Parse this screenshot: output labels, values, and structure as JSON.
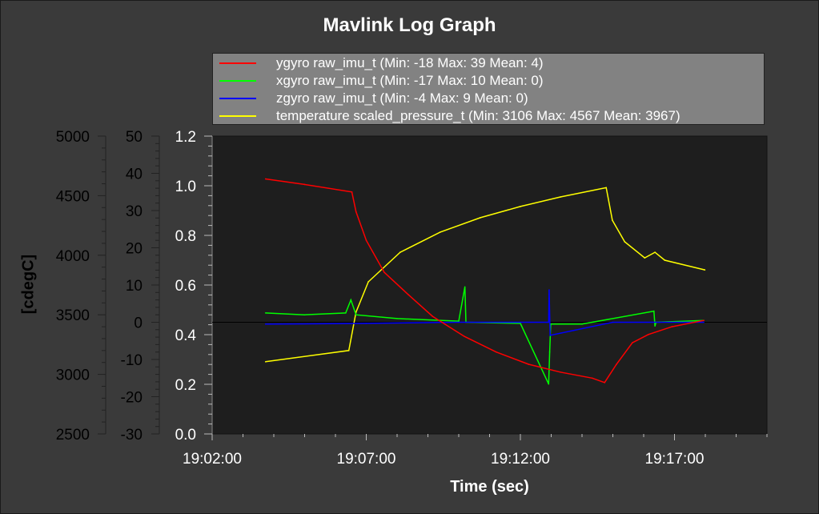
{
  "chart_data": {
    "type": "line",
    "title": "Mavlink Log Graph",
    "xlabel": "Time (sec)",
    "ylabel_left": "[cdegC]",
    "grid": false,
    "legend_placement": "top",
    "x_ticks": [
      "19:02:00",
      "19:07:00",
      "19:12:00",
      "19:17:00"
    ],
    "xlim": [
      "19:02:00",
      "19:20:00"
    ],
    "axes": {
      "temperature": {
        "ylim": [
          2500,
          5000
        ],
        "ticks": [
          "2500",
          "3000",
          "3500",
          "4000",
          "4500",
          "5000"
        ]
      },
      "gyro": {
        "ylim": [
          -30,
          50
        ],
        "ticks": [
          "-30",
          "-20",
          "-10",
          "0",
          "10",
          "20",
          "30",
          "40",
          "50"
        ]
      },
      "main": {
        "ylim": [
          0.0,
          1.2
        ],
        "ticks": [
          "0.0",
          "0.2",
          "0.4",
          "0.6",
          "0.8",
          "1.0",
          "1.2"
        ]
      }
    },
    "series": [
      {
        "name": "ygyro raw_imu_t (Min: -18 Max: 39 Mean: 4)",
        "color": "#ff0000",
        "axis": "gyro",
        "x": [
          "19:03:44",
          "19:05:00",
          "19:06:32",
          "19:06:40",
          "19:07:00",
          "19:07:35",
          "19:08:22",
          "19:09:09",
          "19:10:11",
          "19:11:13",
          "19:12:16",
          "19:13:18",
          "19:14:20",
          "19:14:44",
          "19:15:07",
          "19:15:38",
          "19:16:09",
          "19:16:55",
          "19:17:57"
        ],
        "y": [
          38.5,
          37,
          35,
          29.7,
          22,
          13.4,
          7.4,
          1.6,
          -3.8,
          -8,
          -11.3,
          -13.4,
          -15,
          -16.2,
          -11.3,
          -5.5,
          -3.3,
          -1.2,
          0.5
        ]
      },
      {
        "name": "xgyro raw_imu_t (Min: -17 Max: 10 Mean: 0)",
        "color": "#00ff00",
        "axis": "gyro",
        "x": [
          "19:03:44",
          "19:05:00",
          "19:06:20",
          "19:06:30",
          "19:06:40",
          "19:08:00",
          "19:10:00",
          "19:10:12",
          "19:10:14",
          "19:12:00",
          "19:12:55",
          "19:12:57",
          "19:12:59",
          "19:14:00",
          "19:16:20",
          "19:16:22",
          "19:16:24",
          "19:17:57"
        ],
        "y": [
          2.5,
          2,
          2.5,
          6,
          2,
          1,
          0.3,
          9.5,
          0,
          -0.3,
          -16.6,
          -8,
          -0.5,
          -0.5,
          3,
          -1,
          0,
          0.5
        ]
      },
      {
        "name": "zgyro raw_imu_t (Min: -4 Max: 9 Mean: 0)",
        "color": "#0000ff",
        "axis": "gyro",
        "x": [
          "19:03:44",
          "19:07:00",
          "19:10:00",
          "19:12:55",
          "19:12:56",
          "19:12:58",
          "19:15:00",
          "19:17:57"
        ],
        "y": [
          -0.5,
          -0.3,
          0,
          0,
          8.7,
          -3.5,
          0,
          0
        ]
      },
      {
        "name": "temperature scaled_pressure_t (Min: 3106 Max: 4567 Mean: 3967)",
        "color": "#ffff00",
        "axis": "temperature",
        "x": [
          "19:03:44",
          "19:06:26",
          "19:06:40",
          "19:07:04",
          "19:08:06",
          "19:09:24",
          "19:10:42",
          "19:12:00",
          "19:13:18",
          "19:14:47",
          "19:14:59",
          "19:15:23",
          "19:16:02",
          "19:16:22",
          "19:16:41",
          "19:17:59"
        ],
        "y": [
          3106,
          3200,
          3522,
          3777,
          4025,
          4194,
          4315,
          4409,
          4489,
          4567,
          4294,
          4113,
          3978,
          4025,
          3958,
          3877
        ]
      }
    ]
  }
}
